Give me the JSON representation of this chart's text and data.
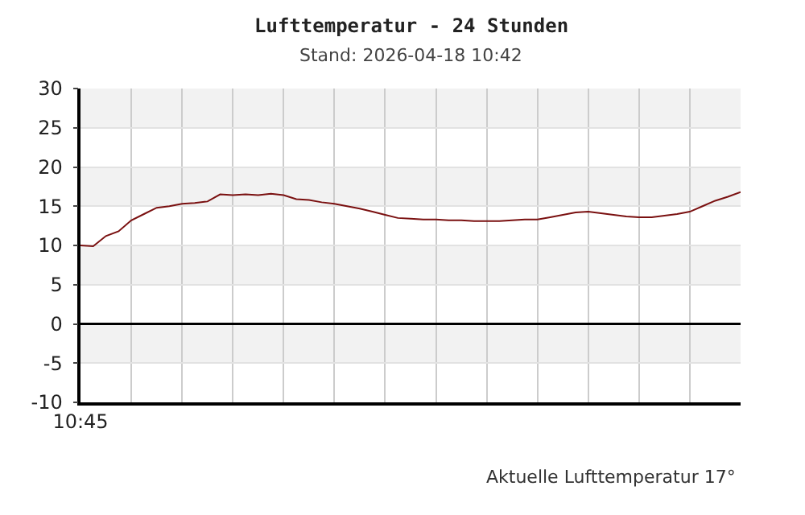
{
  "chart_data": {
    "type": "line",
    "title": "Lufttemperatur - 24 Stunden",
    "subtitle": "Stand: 2026-04-18 10:42",
    "annotations": [
      "Aktuelle Lufttemperatur 17°"
    ],
    "categories": [
      "10:45",
      null,
      null,
      null,
      null,
      null,
      null,
      null,
      null,
      null,
      null,
      null,
      null,
      null,
      null,
      null,
      null,
      null,
      null,
      null,
      null,
      null,
      null,
      null,
      null,
      null,
      null,
      null,
      null,
      null,
      null,
      null,
      null,
      null,
      null,
      null,
      null,
      null,
      null,
      null,
      null,
      null,
      null,
      null,
      null,
      null,
      null,
      null,
      null,
      null,
      null,
      null,
      null
    ],
    "series": [
      {
        "color": "#7a1010",
        "values": [
          10.0,
          9.9,
          11.2,
          11.8,
          13.2,
          14.0,
          14.8,
          15.0,
          15.3,
          15.4,
          15.6,
          16.5,
          16.4,
          16.5,
          16.4,
          16.6,
          16.4,
          15.9,
          15.8,
          15.5,
          15.3,
          15.0,
          14.7,
          14.3,
          13.9,
          13.5,
          13.4,
          13.3,
          13.3,
          13.2,
          13.2,
          13.1,
          13.1,
          13.1,
          13.2,
          13.3,
          13.3,
          13.6,
          13.9,
          14.2,
          14.3,
          14.1,
          13.9,
          13.7,
          13.6,
          13.6,
          13.8,
          14.0,
          14.3,
          15.0,
          15.7,
          16.2,
          16.8
        ]
      }
    ],
    "ylim": [
      -10,
      30
    ],
    "yticks": [
      -10,
      -5,
      0,
      5,
      10,
      15,
      20,
      25,
      30
    ],
    "bands": [
      {
        "axis": "y",
        "from": 25,
        "to": 30,
        "color": "#f2f2f2"
      },
      {
        "axis": "y",
        "from": 15,
        "to": 20,
        "color": "#f2f2f2"
      },
      {
        "axis": "y",
        "from": 5,
        "to": 10,
        "color": "#f2f2f2"
      },
      {
        "axis": "y",
        "from": -5,
        "to": 0,
        "color": "#f2f2f2"
      }
    ],
    "ref_lines": [
      {
        "axis": "y",
        "value": 0,
        "color": "#000000"
      }
    ],
    "grid": true,
    "marker": "none",
    "line_style": "solid"
  }
}
